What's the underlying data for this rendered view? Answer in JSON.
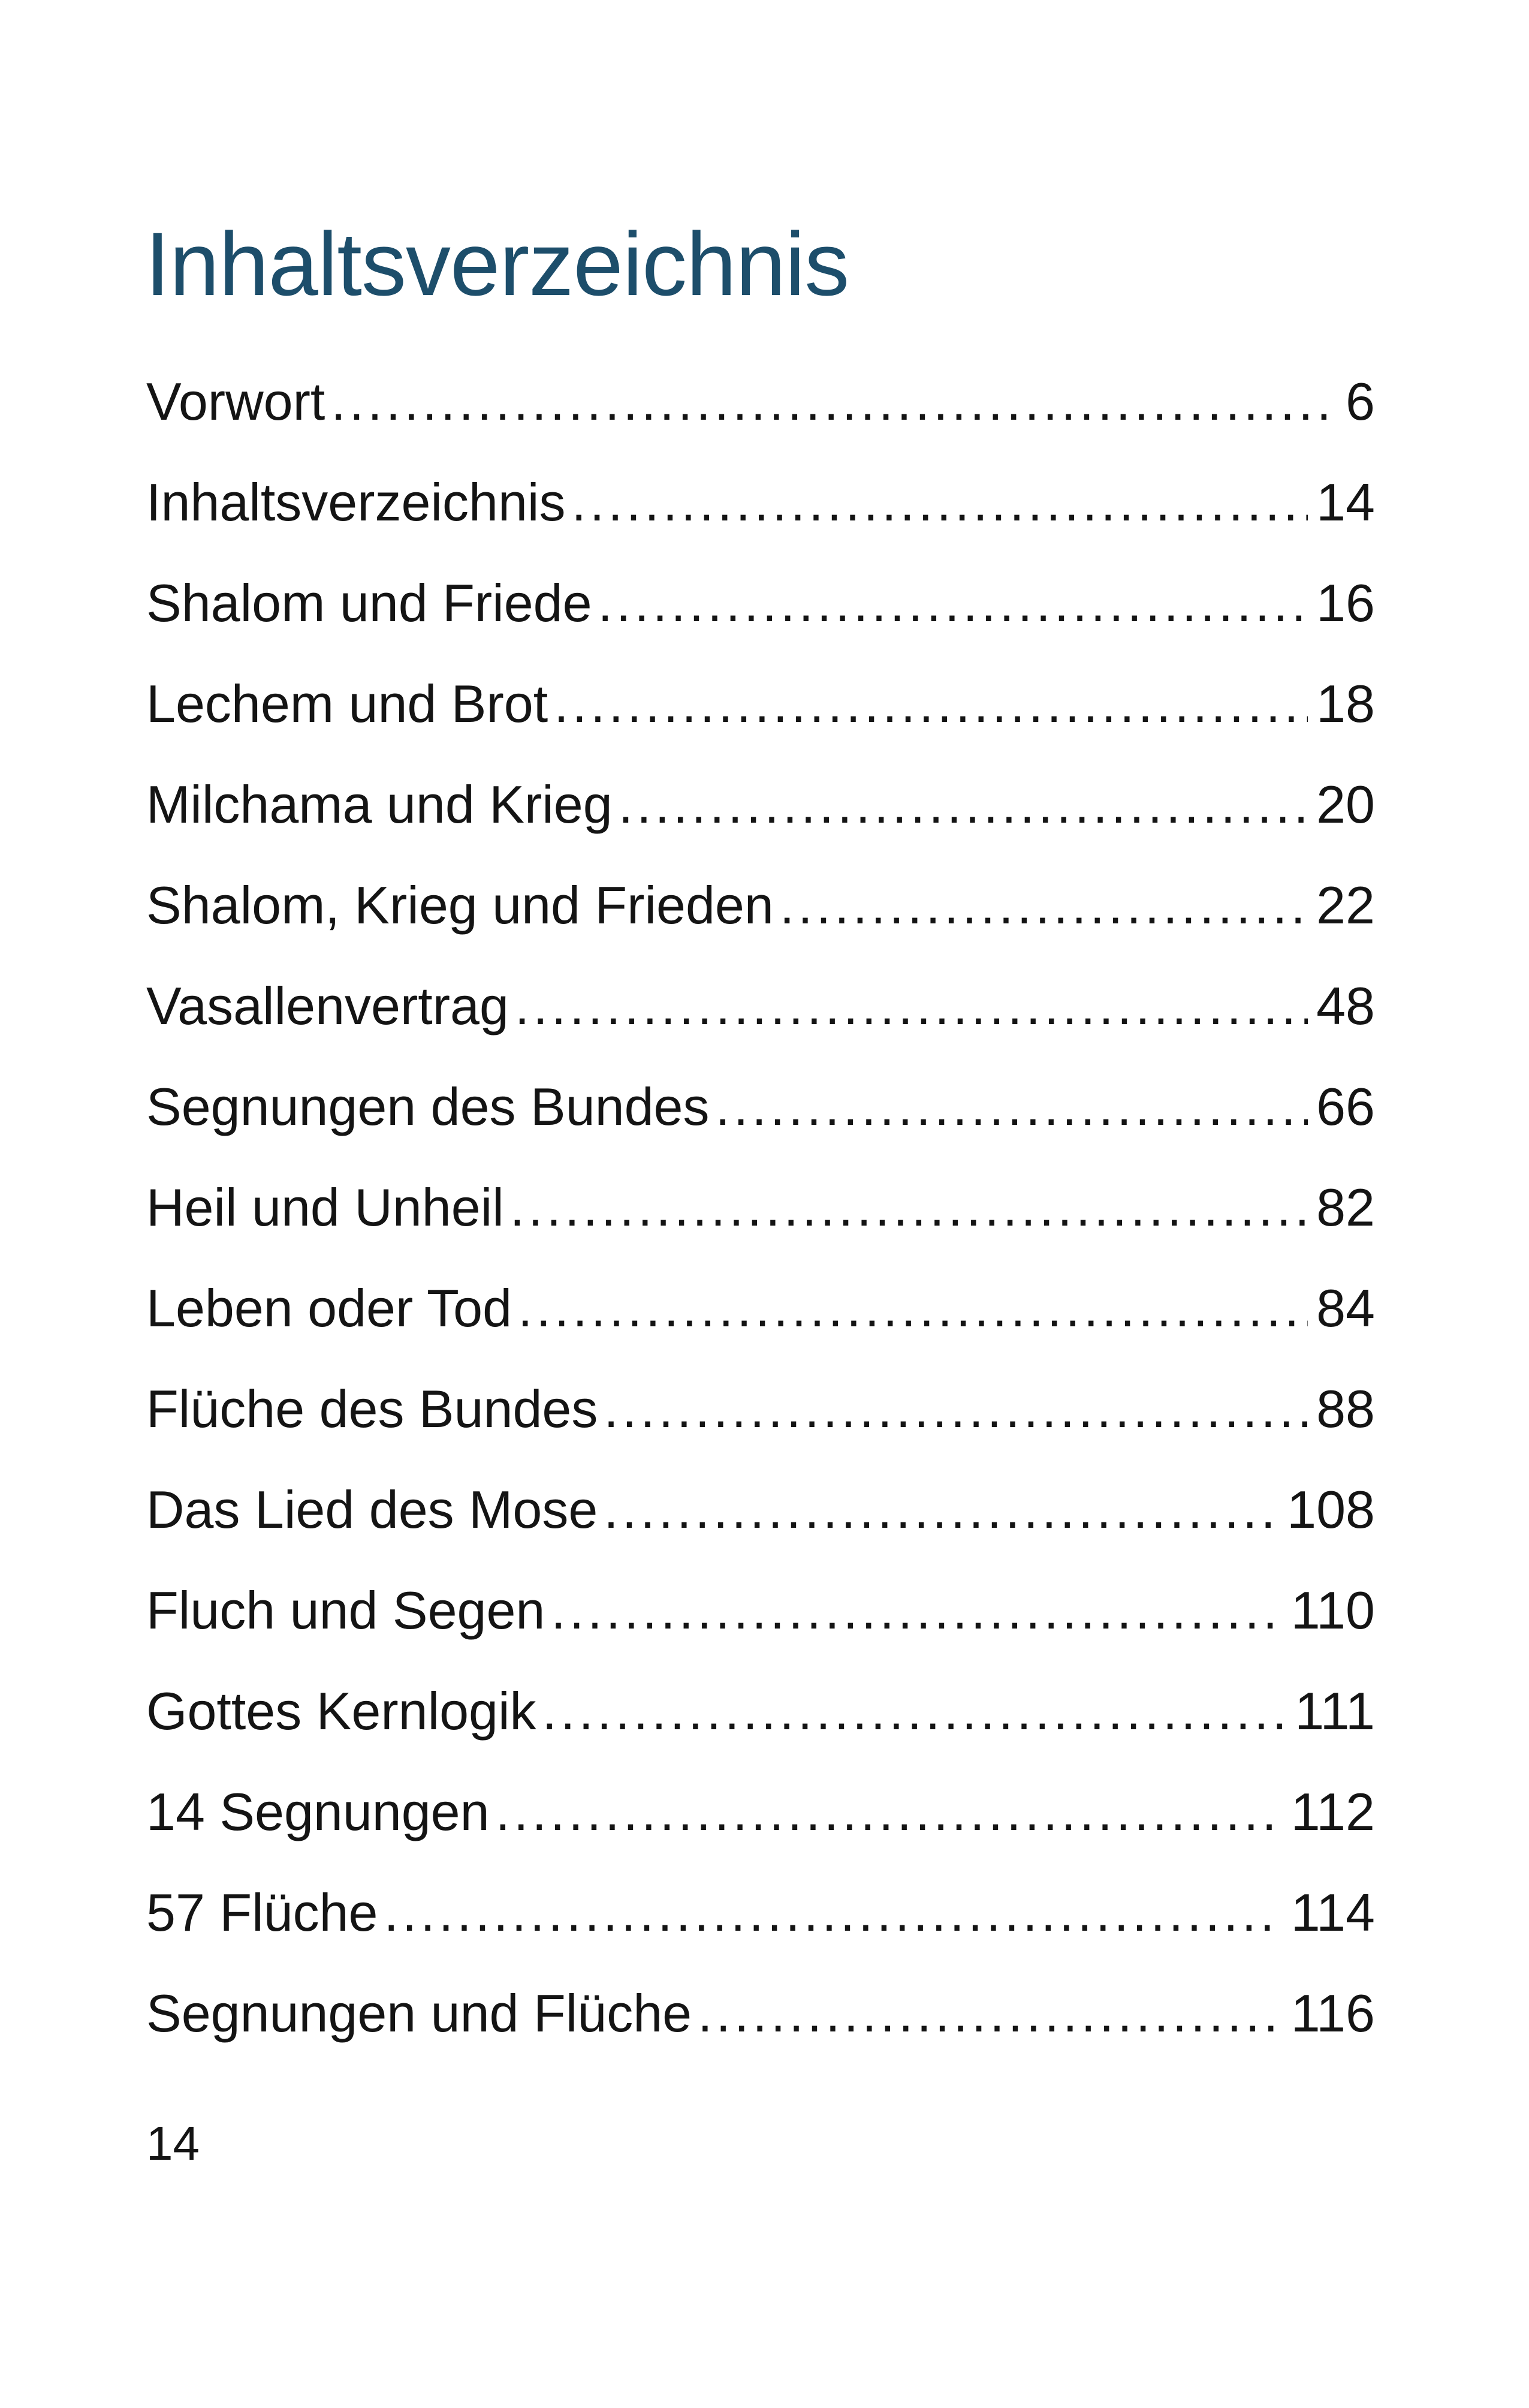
{
  "title": "Inhaltsverzeichnis",
  "entries": [
    {
      "label": "Vorwort",
      "page": "6"
    },
    {
      "label": "Inhaltsverzeichnis",
      "page": "14"
    },
    {
      "label": "Shalom und Friede",
      "page": "16"
    },
    {
      "label": "Lechem und Brot",
      "page": "18"
    },
    {
      "label": "Milchama und Krieg",
      "page": "20"
    },
    {
      "label": "Shalom, Krieg und Frieden",
      "page": "22"
    },
    {
      "label": "Vasallenvertrag",
      "page": "48"
    },
    {
      "label": "Segnungen des Bundes",
      "page": "66"
    },
    {
      "label": "Heil und Unheil",
      "page": "82"
    },
    {
      "label": "Leben oder Tod",
      "page": "84"
    },
    {
      "label": "Flüche des Bundes",
      "page": "88"
    },
    {
      "label": "Das Lied des Mose",
      "page": "108"
    },
    {
      "label": "Fluch und Segen",
      "page": "110"
    },
    {
      "label": "Gottes Kernlogik",
      "page": "111"
    },
    {
      "label": "14 Segnungen",
      "page": "112"
    },
    {
      "label": "57 Flüche",
      "page": "114"
    },
    {
      "label": "Segnungen und Flüche",
      "page": "116"
    }
  ],
  "footer": {
    "page_number": "14"
  },
  "colors": {
    "title": "#1d4e6b",
    "text": "#141414",
    "background": "#ffffff"
  }
}
